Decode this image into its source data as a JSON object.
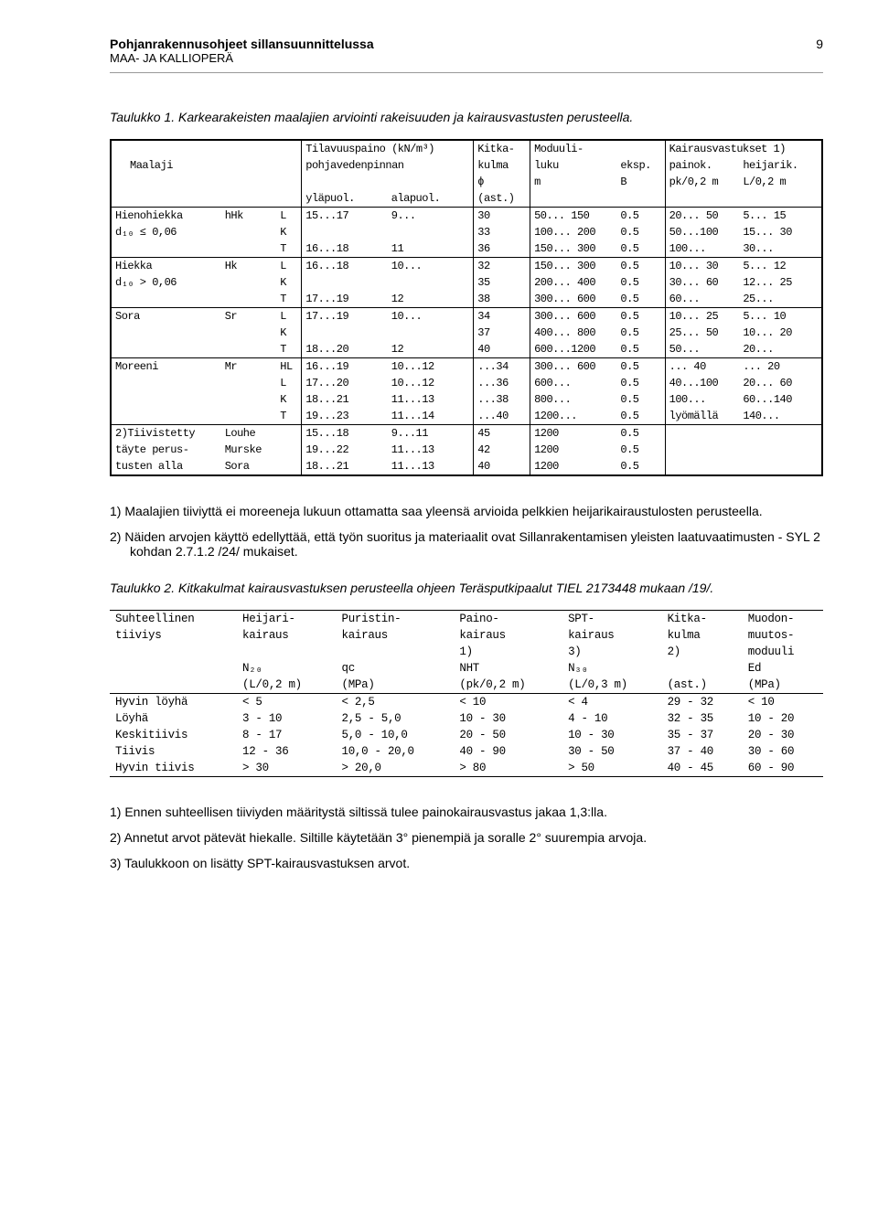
{
  "header": {
    "title": "Pohjanrakennusohjeet sillansuunnittelussa",
    "subtitle": "MAA- JA KALLIOPERÄ",
    "page_number": "9"
  },
  "caption1": {
    "label": "Taulukko 1.",
    "text": "Karkearakeisten maalajien arviointi rakeisuuden ja kairausvastusten perusteella."
  },
  "table1": {
    "headers": {
      "maalaji": "Maalaji",
      "tilav": "Tilavuuspaino (kN/m³)",
      "tilav_sub": "pohjavedenpinnan",
      "ylap": "yläpuol.",
      "alap": "alapuol.",
      "kitka": "Kitka-",
      "kitka2": "kulma",
      "phi": "ϕ",
      "ast": "(ast.)",
      "moduuli": "Moduuli-",
      "luku": "luku",
      "m": "m",
      "eksp": "eksp.",
      "B": "B",
      "kair": "Kairausvastukset 1)",
      "painok": "painok.",
      "pk": "pk/0,2 m",
      "heij": "heijarik.",
      "L02": "L/0,2 m"
    },
    "rows": [
      {
        "name": "Hienohiekka",
        "sym": "hHk",
        "d": "d₁₀ ≤ 0,06",
        "lkt": [
          "L",
          "K",
          "T"
        ],
        "yl": [
          "15...17",
          "",
          "16...18"
        ],
        "al": [
          "9...",
          "",
          "11"
        ],
        "phi": [
          "30",
          "33",
          "36"
        ],
        "ml": [
          "50... 150",
          "100... 200",
          "150... 300"
        ],
        "B": [
          "0.5",
          "0.5",
          "0.5"
        ],
        "pk": [
          "20... 50",
          "50...100",
          "100..."
        ],
        "hj": [
          "5... 15",
          "15... 30",
          "30..."
        ]
      },
      {
        "name": "Hiekka",
        "sym": "Hk",
        "d": "d₁₀ > 0,06",
        "lkt": [
          "L",
          "K",
          "T"
        ],
        "yl": [
          "16...18",
          "",
          "17...19"
        ],
        "al": [
          "10...",
          "",
          "12"
        ],
        "phi": [
          "32",
          "35",
          "38"
        ],
        "ml": [
          "150... 300",
          "200... 400",
          "300... 600"
        ],
        "B": [
          "0.5",
          "0.5",
          "0.5"
        ],
        "pk": [
          "10... 30",
          "30... 60",
          "60..."
        ],
        "hj": [
          "5... 12",
          "12... 25",
          "25..."
        ]
      },
      {
        "name": "Sora",
        "sym": "Sr",
        "d": "",
        "lkt": [
          "L",
          "K",
          "T"
        ],
        "yl": [
          "17...19",
          "",
          "18...20"
        ],
        "al": [
          "10...",
          "",
          "12"
        ],
        "phi": [
          "34",
          "37",
          "40"
        ],
        "ml": [
          "300... 600",
          "400... 800",
          "600...1200"
        ],
        "B": [
          "0.5",
          "0.5",
          "0.5"
        ],
        "pk": [
          "10... 25",
          "25... 50",
          "50..."
        ],
        "hj": [
          "5... 10",
          "10... 20",
          "20..."
        ]
      },
      {
        "name": "Moreeni",
        "sym": "Mr",
        "d": "",
        "lkt": [
          "HL",
          "L",
          "K",
          "T"
        ],
        "yl": [
          "16...19",
          "17...20",
          "18...21",
          "19...23"
        ],
        "al": [
          "10...12",
          "10...12",
          "11...13",
          "11...14"
        ],
        "phi": [
          "...34",
          "...36",
          "...38",
          "...40"
        ],
        "ml": [
          "300... 600",
          "600...",
          "800...",
          "1200..."
        ],
        "B": [
          "0.5",
          "0.5",
          "0.5",
          "0.5"
        ],
        "pk": [
          "... 40",
          "40...100",
          "100...",
          "lyömällä"
        ],
        "hj": [
          "... 20",
          "20... 60",
          "60...140",
          "140..."
        ]
      },
      {
        "name": "2)Tiivistetty",
        "sym": "Louhe",
        "d": "täyte perus-",
        "d2": "tusten alla",
        "lkt": [
          "",
          "Murske",
          "Sora"
        ],
        "yl": [
          "15...18",
          "19...22",
          "18...21"
        ],
        "al": [
          "9...11",
          "11...13",
          "11...13"
        ],
        "phi": [
          "45",
          "42",
          "40"
        ],
        "ml": [
          "1200",
          "1200",
          "1200"
        ],
        "B": [
          "0.5",
          "0.5",
          "0.5"
        ],
        "pk": [
          "",
          "",
          ""
        ],
        "hj": [
          "",
          "",
          ""
        ]
      }
    ]
  },
  "notes1": {
    "n1": "1) Maalajien tiiviyttä ei moreeneja lukuun ottamatta saa yleensä arvioida pelkkien heijarikairaustulosten perusteella.",
    "n2": "2) Näiden arvojen käyttö edellyttää, että työn suoritus ja materiaalit ovat Sillanrakentamisen yleisten laatuvaatimusten - SYL 2 kohdan 2.7.1.2 /24/ mukaiset."
  },
  "caption2": {
    "label": "Taulukko 2.",
    "text": "Kitkakulmat kairausvastuksen perusteella ohjeen Teräsputkipaalut TIEL 2173448 mukaan /19/."
  },
  "table2": {
    "headers": {
      "c1": "Suhteellinen",
      "c1b": "tiiviys",
      "c2": "Heijari-",
      "c2b": "kairaus",
      "c2c": "N₂₀",
      "c2d": "(L/0,2 m)",
      "c3": "Puristin-",
      "c3b": "kairaus",
      "c3c": "qc",
      "c3d": "(MPa)",
      "c4": "Paino-",
      "c4b": "kairaus",
      "c4c": "1)",
      "c4d": "NHT",
      "c4e": "(pk/0,2 m)",
      "c5": "SPT-",
      "c5b": "kairaus",
      "c5c": "3)",
      "c5d": "N₃₀",
      "c5e": "(L/0,3 m)",
      "c6": "Kitka-",
      "c6b": "kulma",
      "c6c": "2)",
      "c6e": "(ast.)",
      "c7": "Muodon-",
      "c7b": "muutos-",
      "c7c": "moduuli",
      "c7d": "Ed",
      "c7e": "(MPa)"
    },
    "rows": [
      {
        "lbl": "Hyvin löyhä",
        "n20": "< 5",
        "qc": "< 2,5",
        "nht": "< 10",
        "n30": "< 4",
        "kk": "29 - 32",
        "ed": "< 10"
      },
      {
        "lbl": "Löyhä",
        "n20": "3 - 10",
        "qc": "2,5 - 5,0",
        "nht": "10 - 30",
        "n30": "4 - 10",
        "kk": "32 - 35",
        "ed": "10 - 20"
      },
      {
        "lbl": "Keskitiivis",
        "n20": "8 - 17",
        "qc": "5,0 - 10,0",
        "nht": "20 - 50",
        "n30": "10 - 30",
        "kk": "35 - 37",
        "ed": "20 - 30"
      },
      {
        "lbl": "Tiivis",
        "n20": "12 - 36",
        "qc": "10,0 - 20,0",
        "nht": "40 - 90",
        "n30": "30 - 50",
        "kk": "37 - 40",
        "ed": "30 - 60"
      },
      {
        "lbl": "Hyvin tiivis",
        "n20": "> 30",
        "qc": "> 20,0",
        "nht": "> 80",
        "n30": "> 50",
        "kk": "40 - 45",
        "ed": "60 - 90"
      }
    ]
  },
  "notes2": {
    "n1": "1) Ennen suhteellisen tiiviyden määritystä siltissä tulee painokairausvastus jakaa 1,3:lla.",
    "n2": "2) Annetut arvot pätevät hiekalle. Siltille käytetään 3° pienempiä ja soralle 2° suurempia arvoja.",
    "n3": "3) Taulukkoon on lisätty SPT-kairausvastuksen arvot."
  }
}
